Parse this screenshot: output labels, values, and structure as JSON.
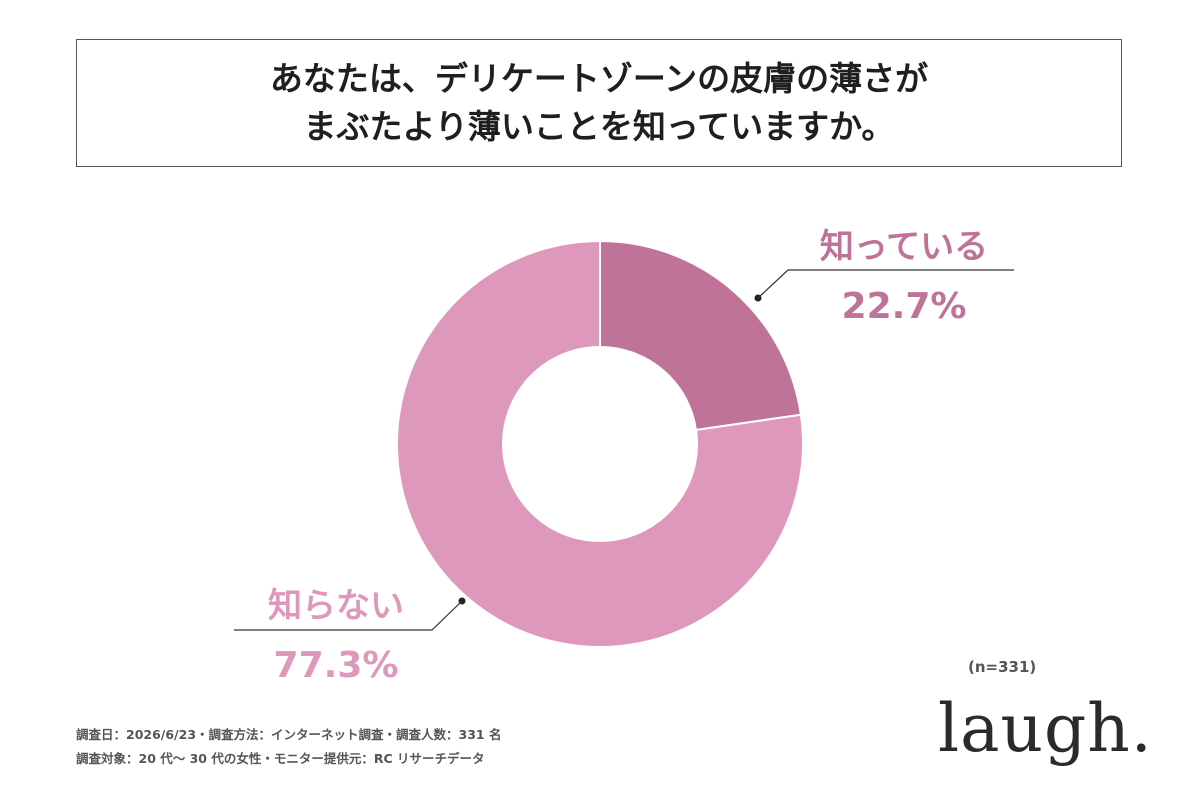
{
  "title": {
    "line1": "あなたは、デリケートゾーンの皮膚の薄さが",
    "line2": "まぶたより薄いことを知っていますか。"
  },
  "chart_data": {
    "type": "pie",
    "donut": true,
    "title": "あなたは、デリケートゾーンの皮膚の薄さがまぶたより薄いことを知っていますか。",
    "categories": [
      "知っている",
      "知らない"
    ],
    "values": [
      22.7,
      77.3
    ],
    "value_labels": [
      "22.7%",
      "77.3%"
    ],
    "colors": [
      "#bf7398",
      "#de98bb"
    ],
    "label_colors": [
      "#bf7398",
      "#de98bb"
    ],
    "legend": "none"
  },
  "sample_size": "(n=331)",
  "footnotes": {
    "line1": "調査日：2026/6/23・調査方法：インターネット調査・調査人数：331 名",
    "line2": "調査対象：20 代～ 30 代の女性・モニター提供元：RC リサーチデータ"
  },
  "logo": "laugh."
}
